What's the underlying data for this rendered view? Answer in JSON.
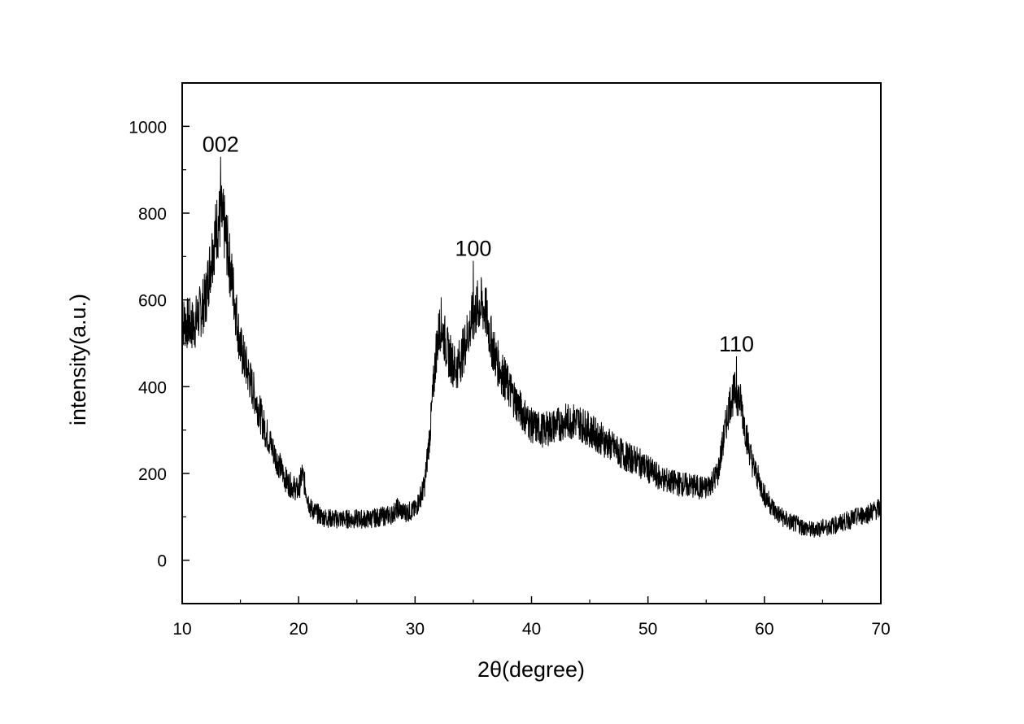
{
  "chart_data": {
    "type": "line",
    "title": "",
    "xlabel": "2θ(degree)",
    "ylabel": "intensity(a.u.)",
    "xlim": [
      10,
      70
    ],
    "ylim": [
      -100,
      1100
    ],
    "xticks": [
      10,
      20,
      30,
      40,
      50,
      60,
      70
    ],
    "yticks": [
      0,
      200,
      400,
      600,
      800,
      1000
    ],
    "grid": false,
    "legend": "none",
    "line_color": "#000000",
    "annotations": [
      {
        "text": "002",
        "x": 13.3,
        "y": 930
      },
      {
        "text": "100",
        "x": 35.0,
        "y": 690
      },
      {
        "text": "110",
        "x": 57.6,
        "y": 470
      }
    ],
    "series": [
      {
        "x": [
          10,
          11,
          12,
          12.5,
          13,
          13.3,
          13.6,
          14,
          14.5,
          15,
          16,
          17,
          18,
          19,
          20,
          20.3,
          21,
          22,
          23,
          24,
          25,
          26,
          27,
          28,
          28.5,
          29,
          30,
          30.8,
          31.3,
          31.8,
          32.2,
          32.8,
          33.5,
          34,
          34.5,
          35,
          35.5,
          36,
          36.5,
          37,
          38,
          39,
          40,
          41,
          42,
          43,
          44,
          45,
          46,
          47,
          48,
          49,
          50,
          51,
          52,
          53,
          54,
          55,
          56,
          56.5,
          57,
          57.5,
          58,
          58.5,
          59,
          60,
          61,
          62,
          63,
          64,
          65,
          66,
          67,
          68,
          69,
          70
        ],
        "y": [
          550,
          540,
          600,
          700,
          770,
          790,
          770,
          700,
          600,
          490,
          400,
          310,
          240,
          180,
          160,
          200,
          120,
          100,
          95,
          95,
          95,
          95,
          100,
          105,
          120,
          110,
          115,
          170,
          300,
          480,
          550,
          480,
          440,
          470,
          520,
          560,
          590,
          580,
          510,
          460,
          400,
          350,
          310,
          300,
          310,
          320,
          320,
          300,
          280,
          260,
          240,
          230,
          210,
          190,
          180,
          175,
          170,
          165,
          200,
          280,
          360,
          390,
          360,
          280,
          220,
          150,
          110,
          90,
          80,
          70,
          75,
          80,
          90,
          100,
          110,
          120
        ]
      }
    ]
  }
}
